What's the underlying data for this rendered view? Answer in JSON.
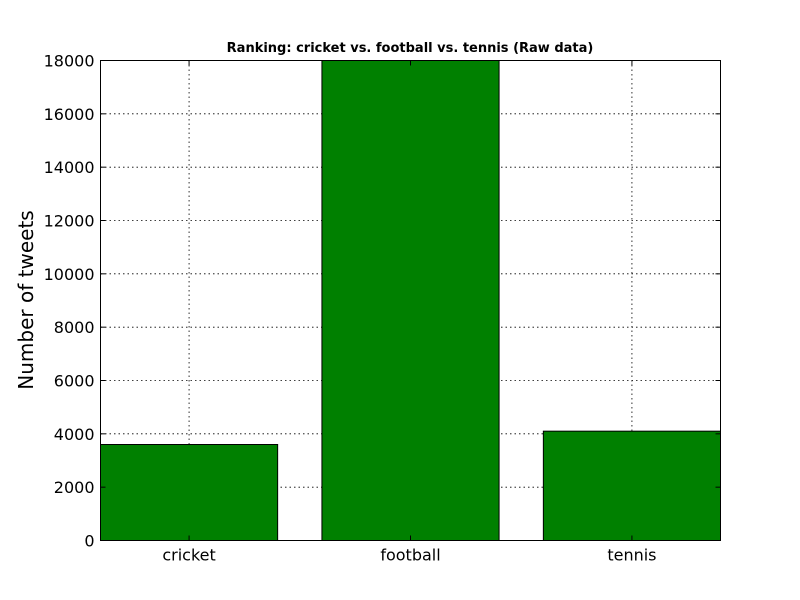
{
  "chart_data": {
    "type": "bar",
    "title": "Ranking: cricket vs. football vs. tennis (Raw data)",
    "xlabel": "",
    "ylabel": "Number of tweets",
    "categories": [
      "cricket",
      "football",
      "tennis"
    ],
    "values": [
      3600,
      18000,
      4100
    ],
    "ylim": [
      0,
      18000
    ],
    "yticks": [
      0,
      2000,
      4000,
      6000,
      8000,
      10000,
      12000,
      14000,
      16000,
      18000
    ],
    "grid": true,
    "bar_color": "#008000"
  }
}
